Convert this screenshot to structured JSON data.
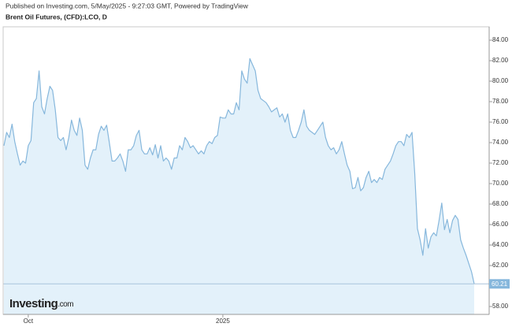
{
  "chart_data": {
    "type": "area",
    "subtitle": "Published on Investing.com, 5/May/2025 - 9:27:03 GMT, Powered by TradingView",
    "title": "Brent Oil Futures, (CFD):LCO, D",
    "logo": "Investing",
    "logo_suffix": ".com",
    "color": "#86b7dc",
    "fill": "#e3f1fa",
    "price_line_color": "#a9c4dc",
    "categories": [
      null,
      null,
      null,
      null,
      null,
      null,
      null,
      null,
      null,
      "Oct",
      null,
      null,
      null,
      null,
      null,
      null,
      null,
      null,
      null,
      null,
      null,
      null,
      null,
      null,
      null,
      null,
      null,
      null,
      null,
      null,
      null,
      null,
      null,
      null,
      null,
      null,
      null,
      null,
      null,
      null,
      null,
      null,
      null,
      null,
      null,
      null,
      null,
      null,
      null,
      null,
      null,
      null,
      null,
      null,
      null,
      null,
      null,
      null,
      null,
      null,
      null,
      null,
      null,
      null,
      null,
      null,
      null,
      null,
      null,
      null,
      null,
      null,
      null,
      null,
      null,
      null,
      null,
      null,
      null,
      null,
      null,
      "2025",
      null,
      null,
      null,
      null,
      null,
      null,
      null,
      null,
      null,
      null,
      null,
      null,
      null,
      null,
      null,
      null,
      null,
      null,
      null,
      null,
      null,
      null,
      null,
      null,
      null,
      null,
      null,
      null,
      null,
      null,
      null,
      null,
      null,
      null,
      null,
      null,
      null,
      null,
      null,
      null,
      null,
      null,
      null,
      null,
      null,
      null,
      null,
      null,
      null,
      null,
      null,
      null,
      null,
      null,
      null,
      null,
      null,
      null,
      null,
      null,
      null,
      null,
      null,
      null,
      null,
      null,
      null,
      null,
      null,
      null,
      null,
      null,
      null,
      null,
      null,
      null,
      null,
      null,
      null,
      null,
      null,
      null,
      null,
      null,
      null,
      null,
      null,
      null,
      null,
      null,
      null,
      null,
      null
    ],
    "values": [
      73.7,
      75.0,
      74.5,
      75.8,
      74.1,
      72.9,
      71.8,
      72.2,
      72.0,
      73.7,
      74.2,
      77.9,
      78.3,
      81.0,
      77.5,
      76.8,
      78.3,
      79.5,
      79.1,
      77.2,
      74.5,
      74.2,
      74.5,
      73.3,
      74.5,
      76.2,
      75.2,
      74.7,
      76.4,
      75.2,
      71.8,
      71.4,
      72.5,
      73.3,
      73.3,
      74.8,
      75.6,
      75.2,
      75.7,
      74.0,
      72.2,
      72.2,
      72.5,
      72.9,
      72.2,
      71.2,
      73.3,
      73.3,
      73.7,
      74.7,
      75.2,
      73.3,
      72.9,
      72.9,
      73.5,
      72.8,
      73.8,
      72.5,
      73.7,
      72.2,
      72.5,
      72.2,
      71.4,
      72.5,
      72.5,
      73.7,
      73.3,
      74.5,
      74.1,
      73.5,
      73.7,
      73.3,
      72.9,
      73.2,
      72.9,
      73.7,
      74.1,
      73.9,
      74.5,
      74.7,
      76.5,
      76.4,
      76.4,
      77.2,
      76.8,
      76.8,
      77.9,
      77.2,
      81.0,
      80.2,
      79.8,
      82.2,
      81.6,
      81.0,
      79.1,
      78.3,
      78.1,
      77.9,
      77.5,
      77.0,
      77.2,
      77.4,
      76.5,
      76.8,
      76.0,
      76.8,
      75.2,
      74.5,
      74.5,
      75.2,
      76.0,
      77.2,
      75.6,
      75.2,
      75.0,
      74.8,
      75.2,
      75.6,
      76.0,
      74.5,
      73.7,
      73.3,
      73.5,
      72.9,
      73.3,
      74.1,
      72.9,
      71.8,
      71.2,
      69.5,
      69.6,
      70.6,
      69.3,
      69.6,
      70.6,
      71.2,
      70.1,
      70.4,
      70.1,
      70.6,
      70.4,
      71.4,
      71.8,
      72.2,
      72.9,
      73.7,
      74.1,
      74.1,
      73.7,
      74.8,
      74.5,
      75.0,
      71.0,
      65.6,
      64.5,
      63.0,
      65.6,
      63.7,
      64.8,
      65.2,
      64.9,
      66.4,
      68.1,
      65.5,
      66.5,
      65.2,
      66.4,
      66.9,
      66.5,
      64.5,
      63.7,
      63.0,
      62.2,
      61.4,
      60.21
    ],
    "ylim": [
      57.2,
      85
    ],
    "yticks": [
      {
        "value": 58,
        "label": "58.00"
      },
      {
        "value": 60,
        "label": "60.00"
      },
      {
        "value": 62,
        "label": "62.00"
      },
      {
        "value": 64,
        "label": "64.00"
      },
      {
        "value": 66,
        "label": "66.00"
      },
      {
        "value": 68,
        "label": "68.00"
      },
      {
        "value": 70,
        "label": "70.00"
      },
      {
        "value": 72,
        "label": "72.00"
      },
      {
        "value": 74,
        "label": "74.00"
      },
      {
        "value": 76,
        "label": "76.00"
      },
      {
        "value": 78,
        "label": "78.00"
      },
      {
        "value": 80,
        "label": "80.00"
      },
      {
        "value": 82,
        "label": "82.00"
      },
      {
        "value": 84,
        "label": "84.00"
      }
    ],
    "grid": false
  }
}
